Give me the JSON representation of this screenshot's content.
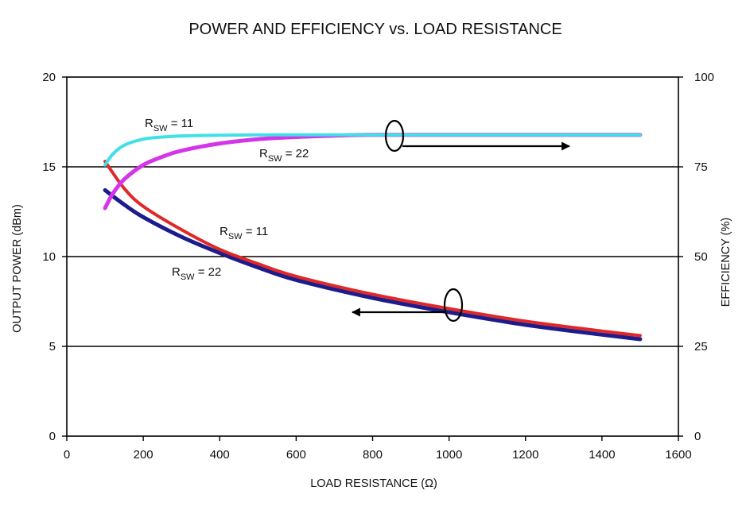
{
  "chart_data": {
    "type": "line",
    "title": "POWER AND EFFICIENCY vs. LOAD RESISTANCE",
    "xlabel": "LOAD RESISTANCE (Ω)",
    "ylabel_left": "OUTPUT POWER (dBm)",
    "ylabel_right": "EFFICIENCY (%)",
    "xlim": [
      0,
      1600
    ],
    "ylim_left": [
      0,
      20
    ],
    "ylim_right": [
      0,
      100
    ],
    "x_ticks": [
      0,
      200,
      400,
      600,
      800,
      1000,
      1200,
      1400,
      1600
    ],
    "y_left_ticks": [
      0,
      5,
      10,
      15,
      20
    ],
    "y_right_ticks": [
      0,
      25,
      50,
      75,
      100
    ],
    "grid": "horizontal",
    "series": [
      {
        "name": "Efficiency, RSW = 11",
        "axis": "right",
        "color": "#40e0e8",
        "x": [
          100,
          120,
          150,
          200,
          250,
          300,
          400,
          500,
          600,
          800,
          1000,
          1200,
          1500
        ],
        "y": [
          75.5,
          78.5,
          81,
          82.7,
          83.3,
          83.6,
          83.8,
          83.9,
          83.9,
          83.9,
          83.9,
          83.9,
          83.9
        ]
      },
      {
        "name": "Efficiency, RSW = 22",
        "axis": "right",
        "color": "#d535e8",
        "x": [
          100,
          120,
          150,
          200,
          250,
          300,
          400,
          500,
          600,
          700,
          800,
          1000,
          1200,
          1500
        ],
        "y": [
          63.5,
          67.5,
          71.5,
          75.5,
          77.8,
          79.5,
          81.5,
          82.7,
          83.3,
          83.7,
          83.9,
          83.9,
          83.9,
          83.9
        ]
      },
      {
        "name": "Output Power, RSW = 11",
        "axis": "left",
        "color": "#e02828",
        "x": [
          100,
          150,
          200,
          300,
          400,
          500,
          600,
          800,
          1000,
          1200,
          1400,
          1500
        ],
        "y": [
          15.3,
          13.8,
          12.8,
          11.5,
          10.4,
          9.6,
          8.9,
          7.9,
          7.1,
          6.4,
          5.85,
          5.6
        ]
      },
      {
        "name": "Output Power, RSW = 22",
        "axis": "left",
        "color": "#1c1c8c",
        "x": [
          100,
          150,
          200,
          300,
          400,
          500,
          600,
          800,
          1000,
          1200,
          1400,
          1500
        ],
        "y": [
          13.7,
          12.9,
          12.2,
          11.1,
          10.2,
          9.4,
          8.7,
          7.7,
          6.9,
          6.2,
          5.65,
          5.4
        ]
      }
    ],
    "annotations": [
      {
        "base": "R",
        "sub": "SW",
        "suffix": " = 11",
        "target": "Efficiency, RSW = 11"
      },
      {
        "base": "R",
        "sub": "SW",
        "suffix": " = 22",
        "target": "Efficiency, RSW = 22"
      },
      {
        "base": "R",
        "sub": "SW",
        "suffix": " = 11",
        "target": "Output Power, RSW = 11"
      },
      {
        "base": "R",
        "sub": "SW",
        "suffix": " = 22",
        "target": "Output Power, RSW = 22"
      }
    ],
    "indicators": [
      {
        "name": "efficiency-axis-indicator",
        "direction": "right",
        "meaning": "efficiency curves read on right axis"
      },
      {
        "name": "power-axis-indicator",
        "direction": "left",
        "meaning": "output power curves read on left axis"
      }
    ]
  }
}
